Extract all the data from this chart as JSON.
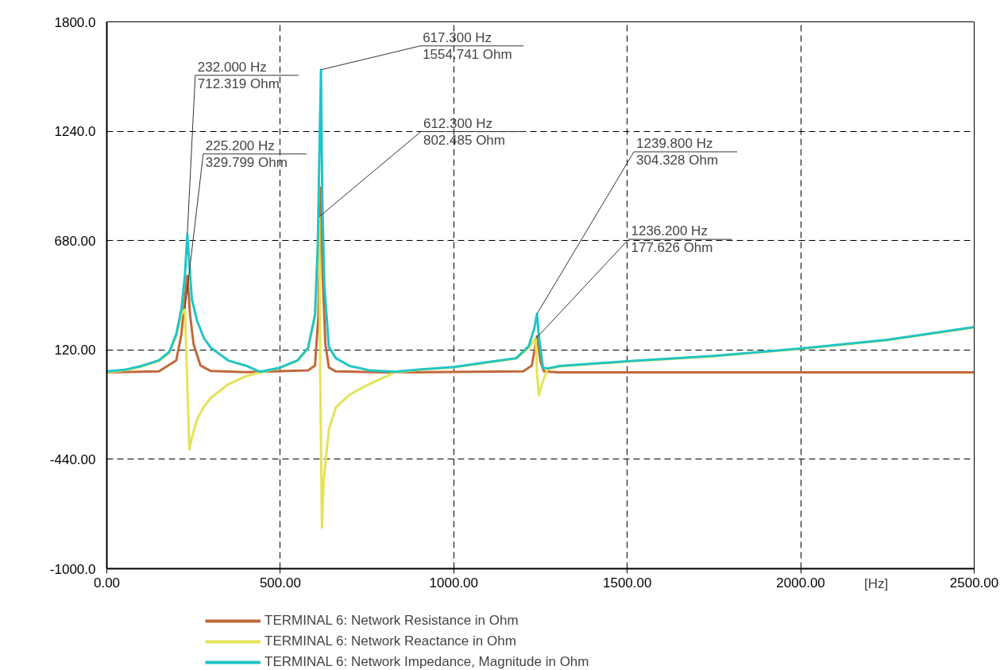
{
  "chart_data": {
    "type": "line",
    "xlabel": "[Hz]",
    "xlim": [
      0,
      2500
    ],
    "ylim": [
      -1000,
      1800
    ],
    "xticks": [
      {
        "value": 0,
        "label": "0.00"
      },
      {
        "value": 500,
        "label": "500.00"
      },
      {
        "value": 1000,
        "label": "1000.00"
      },
      {
        "value": 1500,
        "label": "1500.00"
      },
      {
        "value": 2000,
        "label": "2000.00"
      },
      {
        "value": 2500,
        "label": "2500.00"
      }
    ],
    "yticks": [
      {
        "value": -1000,
        "label": "-1000.0"
      },
      {
        "value": -440,
        "label": "-440.00"
      },
      {
        "value": 120,
        "label": "120.00"
      },
      {
        "value": 680,
        "label": "680.00"
      },
      {
        "value": 1240,
        "label": "1240.0"
      },
      {
        "value": 1800,
        "label": "1800.0"
      }
    ],
    "grid": true,
    "legend": "bottom",
    "marker": "none",
    "line_style": "solid",
    "series": [
      {
        "name": "TERMINAL 6: Network Resistance in Ohm",
        "color": "#c0693a",
        "x": [
          0,
          150,
          200,
          215,
          225,
          232,
          240,
          250,
          270,
          300,
          400,
          580,
          600,
          610,
          617,
          622,
          630,
          640,
          660,
          800,
          1200,
          1225,
          1240,
          1250,
          1260,
          1300,
          2500
        ],
        "values": [
          5,
          10,
          66,
          200,
          380,
          500,
          300,
          150,
          40,
          12,
          6,
          15,
          40,
          300,
          950,
          500,
          150,
          30,
          10,
          5,
          10,
          40,
          190,
          60,
          10,
          5,
          5
        ]
      },
      {
        "name": "TERMINAL 6: Network Reactance in Ohm",
        "color": "#e3e35a",
        "x": [
          0,
          50,
          100,
          150,
          180,
          200,
          215,
          225.2,
          230,
          238,
          245,
          260,
          280,
          300,
          350,
          400,
          442,
          500,
          550,
          580,
          600,
          608,
          612.3,
          615,
          620,
          625,
          640,
          660,
          700,
          750,
          830,
          900,
          1000,
          1100,
          1180,
          1216,
          1230,
          1236.2,
          1240,
          1245,
          1257,
          1270,
          1305,
          1500,
          1750,
          2000,
          2250,
          2500
        ],
        "values": [
          5,
          15,
          35,
          63,
          105,
          190,
          300,
          329.799,
          50,
          -390,
          -330,
          -235,
          -170,
          -125,
          -56,
          -15,
          5,
          28,
          65,
          128,
          290,
          640,
          802.485,
          0,
          -789,
          -550,
          -288,
          -174,
          -109,
          -60,
          5,
          18,
          31,
          56,
          75,
          130,
          165,
          177.626,
          0,
          -113,
          -40,
          20,
          36,
          60,
          88,
          125,
          170,
          235
        ]
      },
      {
        "name": "TERMINAL 6: Network Impedance, Magnitude in Ohm",
        "color": "#22c4c4",
        "x": [
          0,
          50,
          100,
          150,
          180,
          200,
          215,
          225,
          232,
          238,
          245,
          260,
          280,
          300,
          350,
          400,
          442,
          500,
          550,
          580,
          600,
          608,
          612.3,
          617.3,
          621,
          627,
          640,
          660,
          700,
          760,
          830,
          900,
          1000,
          1100,
          1180,
          1216,
          1232,
          1239.8,
          1246,
          1257,
          1270,
          1305,
          1500,
          1750,
          2000,
          2250,
          2500
        ],
        "values": [
          10,
          18,
          38,
          67,
          110,
          200,
          330,
          500,
          712.319,
          560,
          380,
          270,
          180,
          131,
          66,
          40,
          8,
          30,
          67,
          131,
          300,
          650,
          1100,
          1554.741,
          900,
          450,
          135,
          78,
          38,
          15,
          8,
          20,
          33,
          58,
          78,
          139,
          230,
          304.328,
          180,
          30,
          25,
          38,
          62,
          90,
          127,
          172,
          237
        ]
      }
    ],
    "annotations": [
      {
        "text": "232.000 Hz\n712.319 Ohm",
        "x": 232,
        "y": 712.319
      },
      {
        "text": "225.200 Hz\n329.799 Ohm",
        "x": 225.2,
        "y": 329.799
      },
      {
        "text": "617.300 Hz\n1554.741 Ohm",
        "x": 617.3,
        "y": 1554.741
      },
      {
        "text": "612.300 Hz\n802.485 Ohm",
        "x": 612.3,
        "y": 802.485
      },
      {
        "text": "1239.800 Hz\n304.328 Ohm",
        "x": 1239.8,
        "y": 304.328
      },
      {
        "text": "1236.200 Hz\n177.626 Ohm",
        "x": 1236.2,
        "y": 177.626
      }
    ]
  }
}
